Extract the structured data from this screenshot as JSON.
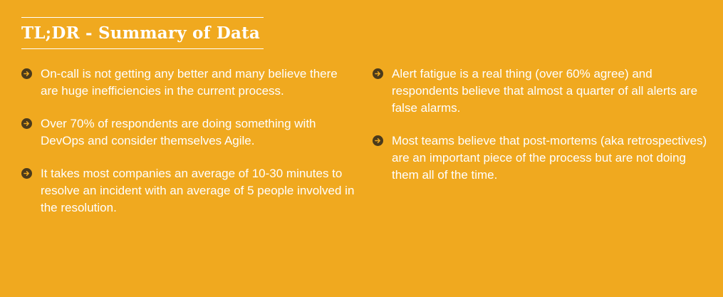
{
  "title": "TL;DR - Summary of Data",
  "left_items": [
    "On-call is not getting any better and many believe there are huge inefficiencies in the current process.",
    "Over 70% of respondents are doing something with DevOps and consider themselves Agile.",
    "It takes most companies an average of 10-30 minutes to resolve an incident with an average of 5 people involved in the resolution."
  ],
  "right_items": [
    "Alert fatigue is a real thing (over 60% agree) and respondents believe that almost a quarter of all alerts are false alarms.",
    "Most teams believe that post-mortems (aka retrospectives) are an important piece of the process but are not doing them all of the time."
  ],
  "colors": {
    "background": "#f0a91f",
    "text": "#ffffff",
    "bullet": "#4a3a1c"
  },
  "icons": {
    "bullet": "arrow-right-circle-icon"
  }
}
